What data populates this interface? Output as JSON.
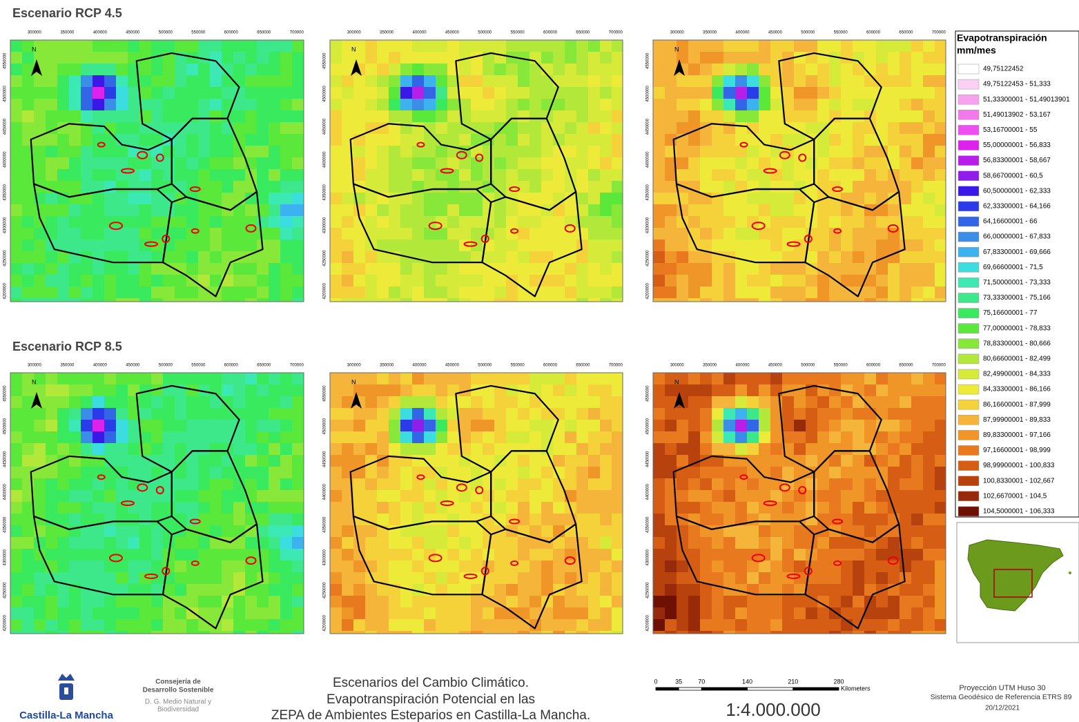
{
  "sections": [
    {
      "title": "Escenario RCP 4.5"
    },
    {
      "title": "Escenario RCP 8.5"
    }
  ],
  "map_axes": {
    "x_ticks": [
      300000,
      350000,
      400000,
      450000,
      500000,
      550000,
      600000,
      650000,
      700000
    ],
    "y_ticks": [
      4200000,
      4250000,
      4300000,
      4350000,
      4400000,
      4450000,
      4500000,
      4550000
    ]
  },
  "north": "N",
  "legend": {
    "title": "Evapotranspiración",
    "unit": "mm/mes",
    "items": [
      {
        "label": "49,75122452",
        "color": "#ffffff"
      },
      {
        "label": "49,75122453 - 51,333",
        "color": "#fbd0f5"
      },
      {
        "label": "51,33300001 - 51,49013901",
        "color": "#f6a3ee"
      },
      {
        "label": "51,49013902 - 53,167",
        "color": "#f07ae8"
      },
      {
        "label": "53,16700001 - 55",
        "color": "#ee4ff0"
      },
      {
        "label": "55,00000001 - 56,833",
        "color": "#dd22ee"
      },
      {
        "label": "56,83300001 - 58,667",
        "color": "#b71ee8"
      },
      {
        "label": "58,66700001 - 60,5",
        "color": "#8f1ee8"
      },
      {
        "label": "60,50000001 - 62,333",
        "color": "#3a18e6"
      },
      {
        "label": "62,33300001 - 64,166",
        "color": "#2a3ce8"
      },
      {
        "label": "64,16600001 - 66",
        "color": "#3366e6"
      },
      {
        "label": "66,00000001 - 67,833",
        "color": "#3a8ee8"
      },
      {
        "label": "67,83300001 - 69,666",
        "color": "#3cb2ee"
      },
      {
        "label": "69,66600001 - 71,5",
        "color": "#3cdde0"
      },
      {
        "label": "71,50000001 - 73,333",
        "color": "#3ce8b4"
      },
      {
        "label": "73,33300001 - 75,166",
        "color": "#3ce88a"
      },
      {
        "label": "75,16600001 - 77",
        "color": "#3aea5e"
      },
      {
        "label": "77,00000001 - 78,833",
        "color": "#5ae83a"
      },
      {
        "label": "78,83300001 - 80,666",
        "color": "#88e83a"
      },
      {
        "label": "80,66600001 - 82,499",
        "color": "#b2e83a"
      },
      {
        "label": "82,49900001 - 84,333",
        "color": "#d6ea3a"
      },
      {
        "label": "84,33300001 - 86,166",
        "color": "#eeea3a"
      },
      {
        "label": "86,16600001 - 87,999",
        "color": "#f5d23a"
      },
      {
        "label": "87,99900001 - 89,833",
        "color": "#f5b43a"
      },
      {
        "label": "89,83300001 - 97,166",
        "color": "#f09628"
      },
      {
        "label": "97,16600001 - 98,999",
        "color": "#e8791e"
      },
      {
        "label": "98,99900001 - 100,833",
        "color": "#d55e14"
      },
      {
        "label": "100,8330001 - 102,667",
        "color": "#b8420e"
      },
      {
        "label": "102,6670001 - 104,5",
        "color": "#972a0a"
      },
      {
        "label": "104,5000001 - 106,333",
        "color": "#6e1004"
      }
    ]
  },
  "footer": {
    "logo": "Castilla-La Mancha",
    "department": [
      "Consejería de",
      "Desarrollo Sostenible"
    ],
    "directorate": [
      "D. G. Medio Natural y",
      "Biodiversidad"
    ],
    "title": [
      "Escenarios del Cambio Climático.",
      "Evapotranspiración Potencial en las",
      "ZEPA de Ambientes Esteparios en Castilla-La Mancha."
    ],
    "scale_bar": {
      "ticks": [
        0,
        35,
        70,
        140,
        210,
        280
      ],
      "unit": "Kilometers",
      "ratio": "1:4.000.000"
    },
    "projection": [
      "Proyección UTM Huso 30",
      "Sistema Geodésico de Referencia ETRS 89"
    ],
    "date": "20/12/2021"
  }
}
